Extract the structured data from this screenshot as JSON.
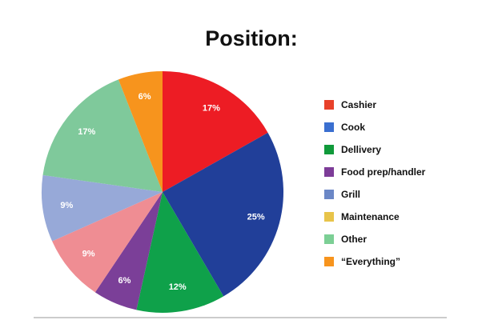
{
  "chart_data": {
    "type": "pie",
    "title": "Position:",
    "categories": [
      "Cashier",
      "Cook",
      "Dellivery",
      "Food prep/handler",
      "Grill",
      "Maintenance",
      "Other",
      "“Everything”"
    ],
    "values": [
      17,
      25,
      12,
      6,
      9,
      9,
      17,
      6
    ],
    "value_labels": [
      "17%",
      "25%",
      "12%",
      "6%",
      "9%",
      "9%",
      "17%",
      "6%"
    ],
    "colors": [
      "#ed1c24",
      "#213f99",
      "#0fa14a",
      "#7b3f98",
      "#ef8d93",
      "#97a9d8",
      "#7fc99b",
      "#f7941d"
    ],
    "legend_colors": [
      "#e8412a",
      "#3a6fd0",
      "#109a3a",
      "#7d3c98",
      "#6b87c6",
      "#e8c44a",
      "#7ccf95",
      "#f7941d"
    ]
  }
}
